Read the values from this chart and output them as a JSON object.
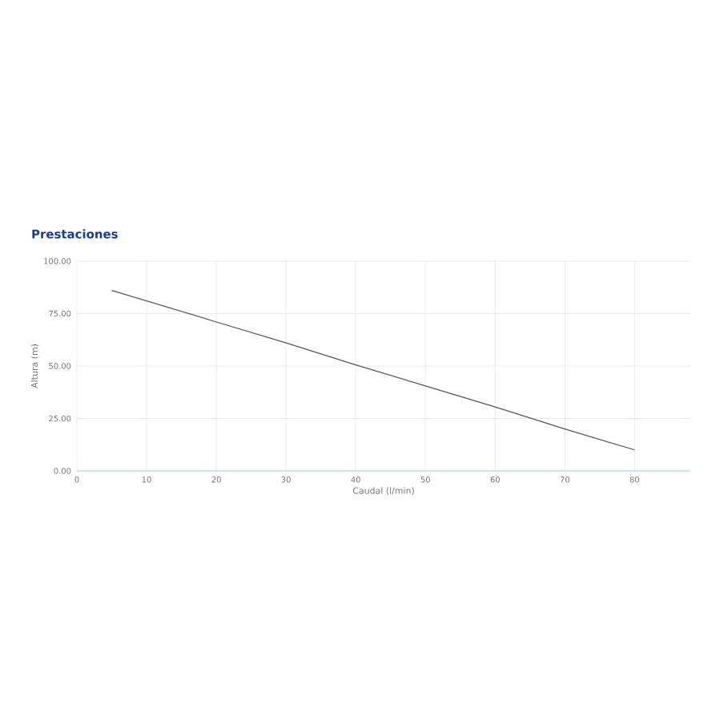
{
  "chart_data": {
    "type": "line",
    "title": "Prestaciones",
    "xlabel": "Caudal (l/min)",
    "ylabel": "Altura (m)",
    "x": [
      5,
      10,
      20,
      30,
      40,
      50,
      60,
      70,
      80
    ],
    "series": [
      {
        "color": "#555555",
        "values": [
          86,
          81,
          71,
          61,
          50.5,
          40.5,
          30.5,
          20,
          10
        ]
      }
    ],
    "xlim": [
      0,
      88
    ],
    "ylim": [
      0,
      100
    ],
    "xticks": [
      0,
      10,
      20,
      30,
      40,
      50,
      60,
      70,
      80
    ],
    "yticks": [
      {
        "value": 0,
        "label": "0.00"
      },
      {
        "value": 25,
        "label": "25.00"
      },
      {
        "value": 50,
        "label": "50.00"
      },
      {
        "value": 75,
        "label": "75.00"
      },
      {
        "value": 100,
        "label": "100.00"
      }
    ],
    "grid": true,
    "marker": "none",
    "line_style": "solid"
  }
}
